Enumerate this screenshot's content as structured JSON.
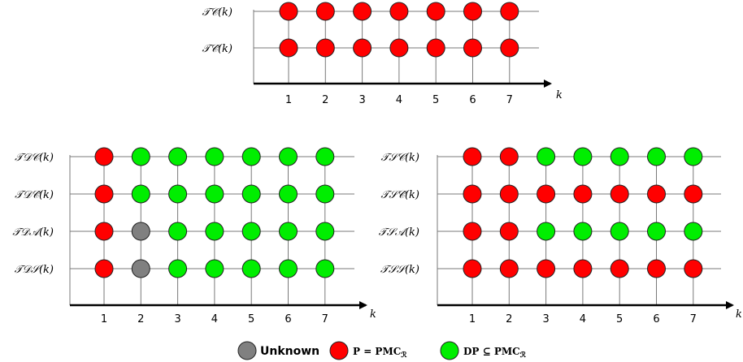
{
  "colors": {
    "unknown": "#808080",
    "p": "#ff0000",
    "dp": "#00ee00"
  },
  "axis_label": "k",
  "ticks": [
    "1",
    "2",
    "3",
    "4",
    "5",
    "6",
    "7"
  ],
  "panels": [
    {
      "id": "tc",
      "rows": [
        {
          "label": "𝒯𝒞(k)",
          "states": [
            "p",
            "p",
            "p",
            "p",
            "p",
            "p",
            "p"
          ]
        },
        {
          "label": "𝒯𝒞̂(k)",
          "states": [
            "p",
            "p",
            "p",
            "p",
            "p",
            "p",
            "p"
          ]
        }
      ]
    },
    {
      "id": "td",
      "rows": [
        {
          "label": "𝒯𝒟𝒞(k)",
          "states": [
            "p",
            "dp",
            "dp",
            "dp",
            "dp",
            "dp",
            "dp"
          ]
        },
        {
          "label": "𝒯𝒟𝒞̂(k)",
          "states": [
            "p",
            "dp",
            "dp",
            "dp",
            "dp",
            "dp",
            "dp"
          ]
        },
        {
          "label": "𝒯𝒟𝒜(k)",
          "states": [
            "p",
            "unknown",
            "dp",
            "dp",
            "dp",
            "dp",
            "dp"
          ]
        },
        {
          "label": "𝒯𝒟𝒮(k)",
          "states": [
            "p",
            "unknown",
            "dp",
            "dp",
            "dp",
            "dp",
            "dp"
          ]
        }
      ]
    },
    {
      "id": "ts",
      "rows": [
        {
          "label": "𝒯𝒮𝒞(k)",
          "states": [
            "p",
            "p",
            "dp",
            "dp",
            "dp",
            "dp",
            "dp"
          ]
        },
        {
          "label": "𝒯𝒮𝒞̂(k)",
          "states": [
            "p",
            "p",
            "p",
            "p",
            "p",
            "p",
            "p"
          ]
        },
        {
          "label": "𝒯𝒮𝒜(k)",
          "states": [
            "p",
            "p",
            "dp",
            "dp",
            "dp",
            "dp",
            "dp"
          ]
        },
        {
          "label": "𝒯𝒮𝒮(k)",
          "states": [
            "p",
            "p",
            "p",
            "p",
            "p",
            "p",
            "p"
          ]
        }
      ]
    }
  ],
  "legend": {
    "unknown": "Unknown",
    "p": "P = PMC",
    "p_sub": "ℛ",
    "dp": "DP ⊆ PMC",
    "dp_sub": "ℛ"
  }
}
